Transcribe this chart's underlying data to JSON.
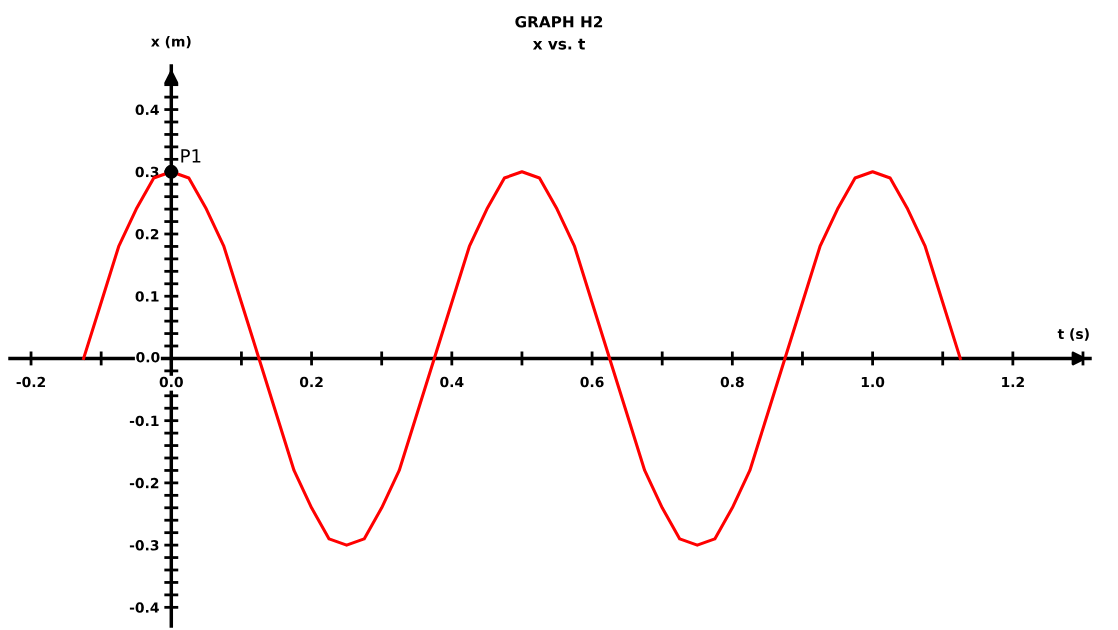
{
  "chart_data": {
    "type": "line",
    "title": "GRAPH H2",
    "subtitle": "x vs. t",
    "xlabel": "t (s)",
    "ylabel": "x (m)",
    "xlim": [
      -0.23,
      1.31
    ],
    "ylim": [
      -0.43,
      0.47
    ],
    "xticks": [
      {
        "value": -0.2,
        "label": "-0.2"
      },
      {
        "value": -0.1,
        "label": null
      },
      {
        "value": 0,
        "label": "0.0"
      },
      {
        "value": 0.1,
        "label": null
      },
      {
        "value": 0.2,
        "label": "0.2"
      },
      {
        "value": 0.3,
        "label": null
      },
      {
        "value": 0.4,
        "label": "0.4"
      },
      {
        "value": 0.5,
        "label": null
      },
      {
        "value": 0.6,
        "label": "0.6"
      },
      {
        "value": 0.7,
        "label": null
      },
      {
        "value": 0.8,
        "label": "0.8"
      },
      {
        "value": 0.9,
        "label": null
      },
      {
        "value": 1.0,
        "label": "1.0"
      },
      {
        "value": 1.1,
        "label": null
      },
      {
        "value": 1.2,
        "label": "1.2"
      },
      {
        "value": 1.3,
        "label": null
      }
    ],
    "yticks": [
      {
        "value": -0.4,
        "label": "-0.4"
      },
      {
        "value": -0.38,
        "label": null
      },
      {
        "value": -0.36,
        "label": null
      },
      {
        "value": -0.34,
        "label": null
      },
      {
        "value": -0.32,
        "label": null
      },
      {
        "value": -0.3,
        "label": "-0.3"
      },
      {
        "value": -0.28,
        "label": null
      },
      {
        "value": -0.26,
        "label": null
      },
      {
        "value": -0.24,
        "label": null
      },
      {
        "value": -0.22,
        "label": null
      },
      {
        "value": -0.2,
        "label": "-0.2"
      },
      {
        "value": -0.18,
        "label": null
      },
      {
        "value": -0.16,
        "label": null
      },
      {
        "value": -0.14,
        "label": null
      },
      {
        "value": -0.12,
        "label": null
      },
      {
        "value": -0.1,
        "label": "-0.1"
      },
      {
        "value": -0.08,
        "label": null
      },
      {
        "value": -0.06,
        "label": null
      },
      {
        "value": -0.04,
        "label": null
      },
      {
        "value": -0.02,
        "label": null
      },
      {
        "value": 0,
        "label": "0.0"
      },
      {
        "value": 0.02,
        "label": null
      },
      {
        "value": 0.04,
        "label": null
      },
      {
        "value": 0.06,
        "label": null
      },
      {
        "value": 0.08,
        "label": null
      },
      {
        "value": 0.1,
        "label": "0.1"
      },
      {
        "value": 0.12,
        "label": null
      },
      {
        "value": 0.14,
        "label": null
      },
      {
        "value": 0.16,
        "label": null
      },
      {
        "value": 0.18,
        "label": null
      },
      {
        "value": 0.2,
        "label": "0.2"
      },
      {
        "value": 0.22,
        "label": null
      },
      {
        "value": 0.24,
        "label": null
      },
      {
        "value": 0.26,
        "label": null
      },
      {
        "value": 0.28,
        "label": null
      },
      {
        "value": 0.3,
        "label": "0.3"
      },
      {
        "value": 0.32,
        "label": null
      },
      {
        "value": 0.34,
        "label": null
      },
      {
        "value": 0.36,
        "label": null
      },
      {
        "value": 0.38,
        "label": null
      },
      {
        "value": 0.4,
        "label": "0.4"
      },
      {
        "value": 0.42,
        "label": null
      },
      {
        "value": 0.44,
        "label": null
      }
    ],
    "grid": false,
    "legend": false,
    "series": [
      {
        "type": "line",
        "color": "#ff0000",
        "marker": "none",
        "line_style": "solid",
        "x": [
          -0.125,
          -0.1,
          -0.075,
          -0.05,
          -0.025,
          0,
          0.025,
          0.05,
          0.075,
          0.1,
          0.125,
          0.15,
          0.175,
          0.2,
          0.225,
          0.25,
          0.275,
          0.3,
          0.325,
          0.35,
          0.375,
          0.4,
          0.425,
          0.45,
          0.475,
          0.5,
          0.525,
          0.55,
          0.575,
          0.6,
          0.625,
          0.65,
          0.675,
          0.7,
          0.725,
          0.75,
          0.775,
          0.8,
          0.825,
          0.85,
          0.875,
          0.9,
          0.925,
          0.95,
          0.975,
          1.0,
          1.025,
          1.05,
          1.075,
          1.1,
          1.125
        ],
        "values": [
          0,
          0.09,
          0.18,
          0.24,
          0.29,
          0.3,
          0.29,
          0.24,
          0.18,
          0.09,
          0,
          -0.09,
          -0.18,
          -0.24,
          -0.29,
          -0.3,
          -0.29,
          -0.24,
          -0.18,
          -0.09,
          0,
          0.09,
          0.18,
          0.24,
          0.29,
          0.3,
          0.29,
          0.24,
          0.18,
          0.09,
          0,
          -0.09,
          -0.18,
          -0.24,
          -0.29,
          -0.3,
          -0.29,
          -0.24,
          -0.18,
          -0.09,
          0,
          0.09,
          0.18,
          0.24,
          0.29,
          0.3,
          0.29,
          0.24,
          0.18,
          0.09,
          0
        ]
      },
      {
        "type": "scatter",
        "name": "P1",
        "color": "#000000",
        "marker": "circle",
        "x": [
          0
        ],
        "values": [
          0.3
        ]
      }
    ]
  }
}
